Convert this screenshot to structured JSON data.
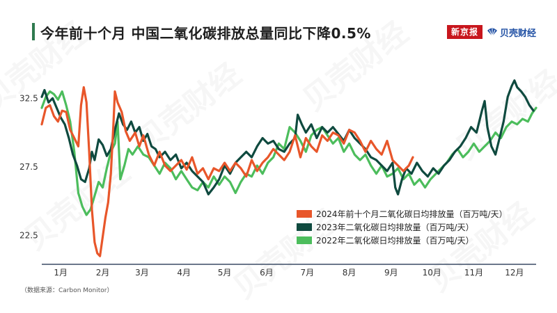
{
  "header": {
    "title": "今年前十个月 中国二氧化碳排放总量同比下降0.5%",
    "brand_primary": "新京报",
    "brand_secondary": "贝壳财经"
  },
  "watermark": "贝壳财经",
  "source": "（数据来源：Carbon Monitor）",
  "colors": {
    "accent_bar": "#2f7a4f",
    "series_2024": "#e8562a",
    "series_2023": "#0f4a3f",
    "series_2022": "#4cbd5c",
    "axis": "#3a4a63"
  },
  "chart_data": {
    "type": "line",
    "title": "今年前十个月 中国二氧化碳排放总量同比下降0.5%",
    "xlabel": "",
    "ylabel": "",
    "months": [
      "1月",
      "2月",
      "3月",
      "4月",
      "5月",
      "6月",
      "7月",
      "8月",
      "9月",
      "10月",
      "11月",
      "12月"
    ],
    "x_unit": "day of year",
    "xlim": [
      1,
      366
    ],
    "ylim": [
      20.4,
      35.0
    ],
    "yticks": [
      22.5,
      27.5,
      32.5
    ],
    "ytick_labels": [
      "22.5",
      "27.5",
      "32.5"
    ],
    "grid": false,
    "legend_position": "bottom-right",
    "series": [
      {
        "name": "2024年前十个月二氧化碳日均排放量（百万吨/天）",
        "color": "#e8562a",
        "points": [
          [
            1,
            30.6
          ],
          [
            4,
            31.8
          ],
          [
            7,
            32.0
          ],
          [
            10,
            31.2
          ],
          [
            13,
            30.8
          ],
          [
            16,
            31.6
          ],
          [
            19,
            31.5
          ],
          [
            22,
            30.2
          ],
          [
            25,
            29.6
          ],
          [
            28,
            29.0
          ],
          [
            30,
            32.0
          ],
          [
            32,
            33.3
          ],
          [
            34,
            32.2
          ],
          [
            36,
            28.6
          ],
          [
            38,
            24.4
          ],
          [
            40,
            22.0
          ],
          [
            42,
            21.2
          ],
          [
            44,
            21.0
          ],
          [
            46,
            22.4
          ],
          [
            48,
            23.8
          ],
          [
            50,
            24.9
          ],
          [
            52,
            27.0
          ],
          [
            54,
            30.8
          ],
          [
            55,
            33.0
          ],
          [
            57,
            32.2
          ],
          [
            60,
            31.5
          ],
          [
            63,
            30.1
          ],
          [
            66,
            29.4
          ],
          [
            70,
            30.0
          ],
          [
            73,
            29.0
          ],
          [
            76,
            29.8
          ],
          [
            80,
            28.4
          ],
          [
            84,
            27.6
          ],
          [
            88,
            28.6
          ],
          [
            92,
            27.6
          ],
          [
            96,
            27.2
          ],
          [
            100,
            27.6
          ],
          [
            104,
            28.0
          ],
          [
            108,
            27.3
          ],
          [
            112,
            28.2
          ],
          [
            116,
            27.0
          ],
          [
            120,
            27.4
          ],
          [
            124,
            26.6
          ],
          [
            128,
            27.4
          ],
          [
            132,
            27.2
          ],
          [
            136,
            27.8
          ],
          [
            140,
            27.2
          ],
          [
            144,
            27.8
          ],
          [
            148,
            27.4
          ],
          [
            152,
            26.8
          ],
          [
            156,
            28.0
          ],
          [
            160,
            27.2
          ],
          [
            164,
            27.8
          ],
          [
            168,
            28.2
          ],
          [
            172,
            28.8
          ],
          [
            176,
            28.4
          ],
          [
            180,
            28.0
          ],
          [
            184,
            28.6
          ],
          [
            188,
            29.8
          ],
          [
            192,
            28.2
          ],
          [
            196,
            29.6
          ],
          [
            200,
            29.0
          ],
          [
            204,
            28.6
          ],
          [
            208,
            29.8
          ],
          [
            212,
            29.4
          ],
          [
            216,
            30.0
          ],
          [
            220,
            29.8
          ],
          [
            224,
            29.2
          ],
          [
            228,
            30.2
          ],
          [
            232,
            30.0
          ],
          [
            236,
            29.4
          ],
          [
            240,
            28.6
          ],
          [
            244,
            29.4
          ],
          [
            248,
            28.8
          ],
          [
            252,
            28.4
          ],
          [
            256,
            29.4
          ],
          [
            260,
            28.0
          ],
          [
            264,
            27.6
          ],
          [
            268,
            27.2
          ],
          [
            272,
            27.6
          ],
          [
            275,
            28.2
          ]
        ]
      },
      {
        "name": "2023年二氧化碳日均排放量（百万吨/天）",
        "color": "#0f4a3f",
        "points": [
          [
            1,
            32.6
          ],
          [
            3,
            33.1
          ],
          [
            6,
            32.2
          ],
          [
            9,
            32.5
          ],
          [
            12,
            31.8
          ],
          [
            15,
            31.1
          ],
          [
            18,
            30.6
          ],
          [
            21,
            29.6
          ],
          [
            24,
            28.4
          ],
          [
            27,
            27.6
          ],
          [
            30,
            26.6
          ],
          [
            33,
            26.4
          ],
          [
            36,
            27.4
          ],
          [
            38,
            28.6
          ],
          [
            40,
            28.0
          ],
          [
            43,
            29.5
          ],
          [
            46,
            29.1
          ],
          [
            49,
            28.3
          ],
          [
            52,
            28.8
          ],
          [
            55,
            30.2
          ],
          [
            58,
            31.4
          ],
          [
            61,
            30.6
          ],
          [
            64,
            30.2
          ],
          [
            67,
            30.8
          ],
          [
            70,
            30.0
          ],
          [
            73,
            30.4
          ],
          [
            76,
            29.4
          ],
          [
            79,
            29.9
          ],
          [
            82,
            29.0
          ],
          [
            85,
            28.8
          ],
          [
            88,
            28.2
          ],
          [
            92,
            28.6
          ],
          [
            96,
            28.0
          ],
          [
            100,
            28.4
          ],
          [
            104,
            27.4
          ],
          [
            108,
            27.8
          ],
          [
            112,
            27.2
          ],
          [
            116,
            26.8
          ],
          [
            120,
            26.4
          ],
          [
            124,
            25.5
          ],
          [
            128,
            26.0
          ],
          [
            132,
            26.6
          ],
          [
            136,
            27.6
          ],
          [
            140,
            27.0
          ],
          [
            144,
            27.8
          ],
          [
            148,
            28.2
          ],
          [
            152,
            28.6
          ],
          [
            156,
            28.2
          ],
          [
            160,
            29.0
          ],
          [
            164,
            29.6
          ],
          [
            168,
            29.2
          ],
          [
            172,
            29.4
          ],
          [
            176,
            28.8
          ],
          [
            180,
            28.6
          ],
          [
            184,
            29.2
          ],
          [
            188,
            29.6
          ],
          [
            190,
            31.3
          ],
          [
            193,
            30.6
          ],
          [
            196,
            30.0
          ],
          [
            200,
            30.6
          ],
          [
            204,
            29.6
          ],
          [
            208,
            30.4
          ],
          [
            212,
            30.0
          ],
          [
            216,
            30.4
          ],
          [
            220,
            29.9
          ],
          [
            224,
            29.4
          ],
          [
            228,
            30.2
          ],
          [
            232,
            29.6
          ],
          [
            236,
            29.2
          ],
          [
            240,
            28.8
          ],
          [
            244,
            28.2
          ],
          [
            248,
            28.0
          ],
          [
            252,
            27.6
          ],
          [
            256,
            27.2
          ],
          [
            260,
            27.8
          ],
          [
            262,
            26.0
          ],
          [
            264,
            25.5
          ],
          [
            267,
            26.6
          ],
          [
            270,
            27.4
          ],
          [
            274,
            27.0
          ],
          [
            278,
            27.8
          ],
          [
            282,
            27.2
          ],
          [
            286,
            26.8
          ],
          [
            290,
            27.4
          ],
          [
            294,
            27.0
          ],
          [
            298,
            27.6
          ],
          [
            302,
            28.0
          ],
          [
            306,
            28.6
          ],
          [
            310,
            29.0
          ],
          [
            314,
            29.6
          ],
          [
            318,
            30.4
          ],
          [
            322,
            30.0
          ],
          [
            326,
            31.6
          ],
          [
            328,
            32.3
          ],
          [
            330,
            30.4
          ],
          [
            333,
            29.0
          ],
          [
            336,
            28.4
          ],
          [
            339,
            29.6
          ],
          [
            342,
            30.8
          ],
          [
            345,
            32.6
          ],
          [
            348,
            33.4
          ],
          [
            350,
            33.8
          ],
          [
            352,
            33.3
          ],
          [
            355,
            33.0
          ],
          [
            358,
            32.6
          ],
          [
            361,
            32.0
          ],
          [
            364,
            31.6
          ]
        ]
      },
      {
        "name": "2022年二氧化碳日均排放量（百万吨/天）",
        "color": "#4cbd5c",
        "points": [
          [
            1,
            31.8
          ],
          [
            4,
            32.6
          ],
          [
            7,
            33.0
          ],
          [
            10,
            32.8
          ],
          [
            13,
            32.4
          ],
          [
            16,
            33.0
          ],
          [
            19,
            32.0
          ],
          [
            22,
            30.8
          ],
          [
            25,
            28.6
          ],
          [
            28,
            25.6
          ],
          [
            31,
            24.6
          ],
          [
            34,
            24.0
          ],
          [
            37,
            24.4
          ],
          [
            40,
            25.4
          ],
          [
            43,
            26.4
          ],
          [
            46,
            26.0
          ],
          [
            49,
            27.4
          ],
          [
            52,
            28.6
          ],
          [
            55,
            29.2
          ],
          [
            57,
            30.8
          ],
          [
            59,
            26.6
          ],
          [
            62,
            27.6
          ],
          [
            65,
            28.8
          ],
          [
            68,
            28.4
          ],
          [
            72,
            29.0
          ],
          [
            76,
            28.4
          ],
          [
            80,
            28.2
          ],
          [
            84,
            27.6
          ],
          [
            88,
            27.0
          ],
          [
            92,
            27.8
          ],
          [
            96,
            27.4
          ],
          [
            100,
            26.6
          ],
          [
            104,
            27.2
          ],
          [
            108,
            26.6
          ],
          [
            112,
            26.0
          ],
          [
            116,
            25.8
          ],
          [
            120,
            26.4
          ],
          [
            124,
            26.0
          ],
          [
            128,
            26.8
          ],
          [
            132,
            26.2
          ],
          [
            136,
            26.8
          ],
          [
            140,
            26.4
          ],
          [
            144,
            25.6
          ],
          [
            148,
            26.4
          ],
          [
            152,
            27.0
          ],
          [
            156,
            26.8
          ],
          [
            160,
            27.6
          ],
          [
            164,
            27.0
          ],
          [
            168,
            27.8
          ],
          [
            172,
            28.2
          ],
          [
            176,
            29.2
          ],
          [
            180,
            28.8
          ],
          [
            184,
            30.4
          ],
          [
            188,
            30.0
          ],
          [
            192,
            29.4
          ],
          [
            196,
            28.6
          ],
          [
            200,
            29.8
          ],
          [
            204,
            30.2
          ],
          [
            208,
            30.4
          ],
          [
            212,
            29.8
          ],
          [
            216,
            29.2
          ],
          [
            220,
            29.6
          ],
          [
            224,
            28.6
          ],
          [
            228,
            29.2
          ],
          [
            232,
            28.4
          ],
          [
            236,
            28.0
          ],
          [
            240,
            28.4
          ],
          [
            244,
            27.6
          ],
          [
            248,
            27.0
          ],
          [
            252,
            27.6
          ],
          [
            256,
            26.8
          ],
          [
            260,
            27.0
          ],
          [
            264,
            27.4
          ],
          [
            268,
            26.6
          ],
          [
            272,
            27.0
          ],
          [
            276,
            26.2
          ],
          [
            280,
            26.6
          ],
          [
            284,
            26.0
          ],
          [
            288,
            26.6
          ],
          [
            292,
            27.0
          ],
          [
            296,
            27.4
          ],
          [
            300,
            27.8
          ],
          [
            304,
            28.4
          ],
          [
            308,
            28.8
          ],
          [
            312,
            28.2
          ],
          [
            316,
            28.6
          ],
          [
            320,
            29.2
          ],
          [
            324,
            28.6
          ],
          [
            328,
            29.0
          ],
          [
            332,
            29.4
          ],
          [
            336,
            30.0
          ],
          [
            340,
            29.6
          ],
          [
            344,
            30.4
          ],
          [
            348,
            30.8
          ],
          [
            352,
            30.6
          ],
          [
            356,
            31.0
          ],
          [
            360,
            30.8
          ],
          [
            363,
            31.4
          ],
          [
            366,
            31.8
          ]
        ]
      }
    ]
  }
}
